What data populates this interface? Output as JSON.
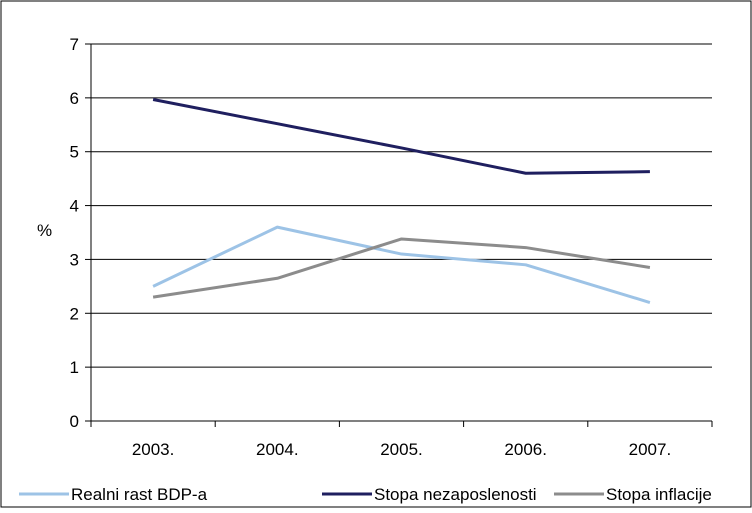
{
  "chart_data": {
    "type": "line",
    "title": "",
    "xlabel": "",
    "ylabel": "%",
    "categories": [
      "2003.",
      "2004.",
      "2005.",
      "2006.",
      "2007."
    ],
    "ylim": [
      0,
      7
    ],
    "yticks": [
      "0",
      "1",
      "2",
      "3",
      "4",
      "5",
      "6",
      "7"
    ],
    "grid": true,
    "legend_position": "bottom",
    "series": [
      {
        "name": "Realni rast BDP-a",
        "color": "#9DC3E6",
        "values": [
          2.5,
          3.6,
          3.1,
          2.9,
          2.2
        ]
      },
      {
        "name": "Stopa nezaposlenosti",
        "color": "#1F1F5F",
        "values": [
          5.97,
          5.52,
          5.07,
          4.6,
          4.63
        ]
      },
      {
        "name": "Stopa inflacije",
        "color": "#8C8C8C",
        "values": [
          2.3,
          2.65,
          3.38,
          3.22,
          2.85
        ]
      }
    ]
  }
}
